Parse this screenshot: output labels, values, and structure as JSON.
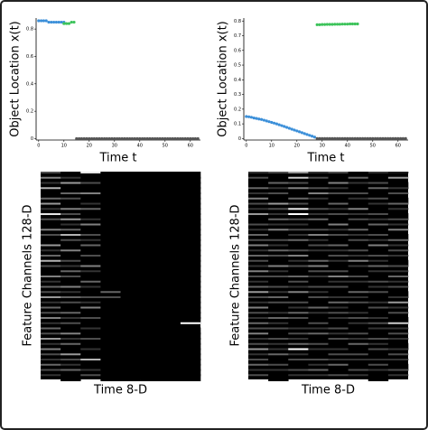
{
  "chart_data": [
    {
      "type": "scatter",
      "xlabel": "Time t",
      "ylabel": "Object Location x(t)",
      "xlim": [
        -1,
        64
      ],
      "ylim": [
        -0.01,
        0.88
      ],
      "xticks": [
        0,
        10,
        20,
        30,
        40,
        50,
        60
      ],
      "yticks": [
        0,
        0.2,
        0.4,
        0.6,
        0.8
      ],
      "series": [
        {
          "color": "#3b8fd9",
          "x": [
            0,
            1,
            2,
            3,
            4,
            5,
            6,
            7,
            8,
            9,
            10
          ],
          "values": [
            0.86,
            0.86,
            0.86,
            0.86,
            0.85,
            0.85,
            0.85,
            0.85,
            0.85,
            0.85,
            0.85
          ]
        },
        {
          "color": "#3cc35a",
          "x": [
            10,
            11,
            12,
            13,
            14
          ],
          "values": [
            0.84,
            0.84,
            0.84,
            0.85,
            0.85
          ]
        },
        {
          "color": "#555555",
          "x": [
            15,
            16,
            17,
            18,
            19,
            20,
            21,
            22,
            23,
            24,
            25,
            26,
            27,
            28,
            29,
            30,
            31,
            32,
            33,
            34,
            35,
            36,
            37,
            38,
            39,
            40,
            41,
            42,
            43,
            44,
            45,
            46,
            47,
            48,
            49,
            50,
            51,
            52,
            53,
            54,
            55,
            56,
            57,
            58,
            59,
            60,
            61,
            62,
            63
          ],
          "values": [
            0,
            0,
            0,
            0,
            0,
            0,
            0,
            0,
            0,
            0,
            0,
            0,
            0,
            0,
            0,
            0,
            0,
            0,
            0,
            0,
            0,
            0,
            0,
            0,
            0,
            0,
            0,
            0,
            0,
            0,
            0,
            0,
            0,
            0,
            0,
            0,
            0,
            0,
            0,
            0,
            0,
            0,
            0,
            0,
            0,
            0,
            0,
            0,
            0
          ]
        }
      ]
    },
    {
      "type": "scatter",
      "xlabel": "Time t",
      "ylabel": "Object Location x(t)",
      "xlim": [
        -1,
        64
      ],
      "ylim": [
        -0.01,
        0.82
      ],
      "xticks": [
        0,
        10,
        20,
        30,
        40,
        50,
        60
      ],
      "yticks": [
        0,
        0.1,
        0.2,
        0.3,
        0.4,
        0.5,
        0.6,
        0.7,
        0.8
      ],
      "series": [
        {
          "color": "#3b8fd9",
          "x": [
            0,
            1,
            2,
            3,
            4,
            5,
            6,
            7,
            8,
            9,
            10,
            11,
            12,
            13,
            14,
            15,
            16,
            17,
            18,
            19,
            20,
            21,
            22,
            23,
            24,
            25,
            26,
            27
          ],
          "values": [
            0.15,
            0.148,
            0.145,
            0.14,
            0.137,
            0.133,
            0.13,
            0.125,
            0.12,
            0.115,
            0.11,
            0.105,
            0.1,
            0.094,
            0.088,
            0.082,
            0.076,
            0.07,
            0.064,
            0.058,
            0.052,
            0.046,
            0.04,
            0.034,
            0.028,
            0.022,
            0.016,
            0.01
          ]
        },
        {
          "color": "#3cc35a",
          "x": [
            28,
            29,
            30,
            31,
            32,
            33,
            34,
            35,
            36,
            37,
            38,
            39,
            40,
            41,
            42,
            43,
            44
          ],
          "values": [
            0.775,
            0.775,
            0.776,
            0.776,
            0.777,
            0.777,
            0.777,
            0.778,
            0.778,
            0.778,
            0.779,
            0.779,
            0.779,
            0.78,
            0.78,
            0.78,
            0.78
          ]
        },
        {
          "color": "#555555",
          "x": [
            28,
            29,
            30,
            31,
            32,
            33,
            34,
            35,
            36,
            37,
            38,
            39,
            40,
            41,
            42,
            43,
            44,
            45,
            46,
            47,
            48,
            49,
            50,
            51,
            52,
            53,
            54,
            55,
            56,
            57,
            58,
            59,
            60,
            61,
            62,
            63
          ],
          "values": [
            0,
            0,
            0,
            0,
            0,
            0,
            0,
            0,
            0,
            0,
            0,
            0,
            0,
            0,
            0,
            0,
            0,
            0,
            0,
            0,
            0,
            0,
            0,
            0,
            0,
            0,
            0,
            0,
            0,
            0,
            0,
            0,
            0,
            0,
            0,
            0
          ]
        }
      ]
    },
    {
      "type": "heatmap",
      "xlabel": "Time 8-D",
      "ylabel": "Feature Channels 128-D",
      "cmap": "gray",
      "z": [
        [
          0.3,
          0,
          0.9,
          0,
          0,
          0,
          0,
          0
        ],
        [
          0.5,
          0.2,
          0,
          0,
          0,
          0,
          0,
          0
        ],
        [
          0.2,
          0.6,
          0.3,
          0,
          0,
          0,
          0,
          0
        ],
        [
          0.7,
          0,
          0,
          0,
          0,
          0,
          0,
          0
        ],
        [
          0,
          0.4,
          0.5,
          0,
          0,
          0,
          0,
          0
        ],
        [
          0.4,
          0.3,
          0,
          0,
          0,
          0,
          0,
          0
        ],
        [
          0.6,
          0,
          0.2,
          0,
          0,
          0,
          0,
          0
        ],
        [
          0.2,
          0.5,
          0.4,
          0,
          0,
          0,
          0,
          0
        ],
        [
          0.9,
          0.3,
          0,
          0,
          0,
          0,
          0,
          0
        ],
        [
          0.3,
          0.6,
          0.2,
          0,
          0,
          0,
          0,
          0
        ],
        [
          0,
          0.2,
          0.5,
          0,
          0,
          0,
          0,
          0
        ],
        [
          0.5,
          0.4,
          0,
          0,
          0,
          0,
          0,
          0
        ],
        [
          0.3,
          0.7,
          0.3,
          0,
          0,
          0,
          0,
          0
        ],
        [
          0,
          0.3,
          0.2,
          0,
          0,
          0,
          0,
          0
        ],
        [
          0.6,
          0,
          0.4,
          0,
          0,
          0,
          0,
          0
        ],
        [
          0.2,
          0.5,
          0,
          0,
          0,
          0,
          0,
          0
        ],
        [
          0.4,
          0,
          0.3,
          0,
          0,
          0,
          0,
          0
        ],
        [
          0.7,
          0.3,
          0,
          0,
          0,
          0,
          0,
          0
        ],
        [
          0.3,
          0.2,
          0.5,
          0,
          0,
          0,
          0,
          0
        ],
        [
          0,
          0.4,
          0.2,
          0,
          0,
          0,
          0,
          0
        ],
        [
          0.5,
          0.3,
          0,
          0,
          0,
          0,
          0,
          0
        ],
        [
          0.2,
          0,
          0.4,
          0,
          0,
          0,
          0,
          0
        ],
        [
          0.4,
          0.5,
          0.2,
          0,
          0,
          0,
          0,
          0
        ],
        [
          0.3,
          0.2,
          0,
          0.4,
          0,
          0,
          0,
          0
        ],
        [
          0.6,
          0.4,
          0.3,
          0.3,
          0,
          0,
          0,
          0
        ],
        [
          0.2,
          0.3,
          0.2,
          0,
          0,
          0,
          0,
          0
        ],
        [
          0.4,
          0,
          0.5,
          0,
          0,
          0,
          0,
          0
        ],
        [
          0.3,
          0.4,
          0,
          0,
          0,
          0,
          0,
          0
        ],
        [
          0.5,
          0.2,
          0.3,
          0,
          0,
          0,
          0,
          0
        ],
        [
          0.2,
          0.3,
          0,
          0,
          0,
          0,
          0,
          1
        ],
        [
          0.4,
          0,
          0.2,
          0,
          0,
          0,
          0,
          0
        ],
        [
          0.3,
          0.5,
          0,
          0,
          0,
          0,
          0,
          0
        ],
        [
          0.6,
          0.2,
          0.3,
          0,
          0,
          0,
          0,
          0
        ],
        [
          0.2,
          0.4,
          0,
          0,
          0,
          0,
          0,
          0
        ],
        [
          0.5,
          0,
          0.2,
          0,
          0,
          0,
          0,
          0
        ],
        [
          0.3,
          0.6,
          0,
          0,
          0,
          0,
          0,
          0
        ],
        [
          0.2,
          0.3,
          0.7,
          0,
          0,
          0,
          0,
          0
        ],
        [
          0.4,
          0.2,
          0,
          0,
          0,
          0,
          0,
          0
        ],
        [
          0.3,
          0.4,
          0.2,
          0,
          0,
          0,
          0,
          0
        ],
        [
          0.2,
          0,
          0.3,
          0,
          0,
          0,
          0,
          0
        ]
      ]
    },
    {
      "type": "heatmap",
      "xlabel": "Time 8-D",
      "ylabel": "Feature Channels 128-D",
      "cmap": "gray",
      "z": [
        [
          0.2,
          0.3,
          0.6,
          0.2,
          0.3,
          0,
          0.2,
          0.1
        ],
        [
          0.3,
          0,
          0.8,
          0.3,
          0,
          0.4,
          0,
          0.6
        ],
        [
          0,
          0.4,
          0.3,
          0,
          0.5,
          0.2,
          0.3,
          0
        ],
        [
          0.4,
          0.2,
          0.5,
          0.3,
          0.2,
          0,
          0.4,
          0.2
        ],
        [
          0.2,
          0.3,
          0,
          0.5,
          0.3,
          0.3,
          0,
          0.3
        ],
        [
          0.5,
          0,
          0.4,
          0.2,
          0,
          0.2,
          0.3,
          0
        ],
        [
          0.3,
          0.6,
          0.3,
          0,
          0.4,
          0,
          0.2,
          0.4
        ],
        [
          0.2,
          0.3,
          0.9,
          0.3,
          0.2,
          0.5,
          0,
          0.2
        ],
        [
          0.6,
          0.2,
          1,
          0.2,
          0.3,
          0.2,
          0.3,
          0
        ],
        [
          0,
          0.4,
          0.3,
          0.4,
          0,
          0.3,
          0.2,
          0.3
        ],
        [
          0.3,
          0.2,
          0.2,
          0,
          0.5,
          0,
          0.4,
          0.2
        ],
        [
          0.2,
          0.5,
          0.3,
          0.3,
          0.2,
          0.4,
          0,
          0.5
        ],
        [
          0.4,
          0,
          0.2,
          0.5,
          0.3,
          0.2,
          0.3,
          0
        ],
        [
          0.3,
          0.3,
          0.4,
          0.2,
          0,
          0.3,
          0.2,
          0.4
        ],
        [
          0.5,
          0.2,
          0,
          0.3,
          0.4,
          0,
          0.5,
          0.2
        ],
        [
          0.2,
          0.4,
          0.3,
          0.2,
          0.2,
          0.3,
          0,
          0.3
        ],
        [
          0.4,
          0.3,
          0.5,
          0,
          0.3,
          0.2,
          0.3,
          0.2
        ],
        [
          0.3,
          0,
          0.2,
          0.4,
          0.2,
          0.5,
          0.2,
          0
        ],
        [
          0.2,
          0.5,
          0.3,
          0.5,
          0,
          0.2,
          0.4,
          0.3
        ],
        [
          0.5,
          0.2,
          0,
          0.3,
          0.3,
          0,
          0.2,
          0.2
        ],
        [
          0.3,
          0.3,
          0.4,
          0.2,
          0.5,
          0.3,
          0,
          0.4
        ],
        [
          0.2,
          0,
          0.3,
          0,
          0.2,
          0.2,
          0.3,
          0.2
        ],
        [
          0.4,
          0.3,
          0.2,
          0.3,
          0.3,
          0,
          0.2,
          0.3
        ],
        [
          0.6,
          0.2,
          0.5,
          0.2,
          0,
          0.4,
          0.3,
          0
        ],
        [
          0.3,
          0.4,
          0,
          0.3,
          0.2,
          0.2,
          0,
          0.2
        ],
        [
          0.2,
          0.3,
          0.3,
          0,
          0.4,
          0.3,
          0.2,
          0.6
        ],
        [
          0.5,
          0,
          0.2,
          0.4,
          0.2,
          0,
          0.3,
          0.2
        ],
        [
          0.3,
          0.2,
          0.4,
          0.2,
          0.3,
          0.2,
          0,
          0.3
        ],
        [
          0.2,
          0.4,
          0.3,
          0,
          0.2,
          0.3,
          0.2,
          0
        ],
        [
          0.4,
          0.2,
          0,
          0.3,
          0,
          0.2,
          0.3,
          0.8
        ],
        [
          0.3,
          0.3,
          0.2,
          0.2,
          0.3,
          0,
          0.2,
          0.2
        ],
        [
          0.5,
          0,
          0.3,
          0.4,
          0.2,
          0.3,
          0,
          0.3
        ],
        [
          0.2,
          0.3,
          0.2,
          0,
          0.3,
          0.2,
          0.3,
          0.2
        ],
        [
          0.3,
          0.2,
          0.4,
          0.3,
          0,
          0.4,
          0.2,
          0
        ],
        [
          0.6,
          0.2,
          1,
          0.2,
          0.2,
          0,
          0.3,
          0.2
        ],
        [
          0.2,
          0.4,
          0.2,
          0,
          0.3,
          0.3,
          0,
          0.3
        ],
        [
          0.3,
          0,
          0.3,
          0.3,
          0.2,
          0.2,
          0.2,
          0.2
        ],
        [
          0.4,
          0.3,
          0,
          0.2,
          0.4,
          0,
          0.3,
          0
        ],
        [
          0.2,
          0.2,
          0.3,
          0.4,
          0,
          0.3,
          0.2,
          0.3
        ],
        [
          0.3,
          0,
          0.2,
          0.2,
          0.3,
          0.2,
          0,
          0.2
        ]
      ]
    }
  ]
}
